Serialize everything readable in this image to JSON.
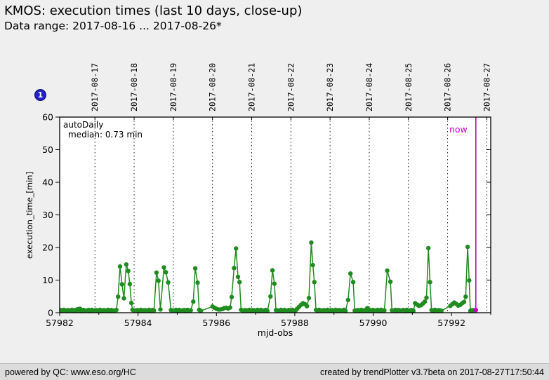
{
  "header": {
    "title": "KMOS: execution times (last 10 days, close-up)",
    "subtitle": "Data range: 2017-08-16 ... 2017-08-26*"
  },
  "badge": {
    "label": "1"
  },
  "footer": {
    "left": "powered by QC: www.eso.org/HC",
    "right": "created by trendPlotter v3.7beta on 2017-08-27T17:50:44"
  },
  "chart_data": {
    "type": "line",
    "title": "KMOS: execution times (last 10 days, close-up)",
    "subtitle": "Data range: 2017-08-16 ... 2017-08-26*",
    "xlabel": "mjd-obs",
    "ylabel": "execution_time_[min]",
    "xlim": [
      57982,
      57993
    ],
    "ylim": [
      0,
      60
    ],
    "x_ticks": [
      57982,
      57984,
      57986,
      57988,
      57990,
      57992
    ],
    "x_minor_ticks": [
      57983,
      57985,
      57987,
      57989,
      57991,
      57993
    ],
    "y_ticks": [
      0,
      10,
      20,
      30,
      40,
      50,
      60
    ],
    "grid": "vertical dotted lines at date boundaries",
    "legend_position": "none",
    "annotations": {
      "dataset_label": "autoDaily",
      "median_label": "median: 0.73 min"
    },
    "date_lines": [
      {
        "mjd": 57982.9,
        "label": "2017-08-17"
      },
      {
        "mjd": 57983.9,
        "label": "2017-08-18"
      },
      {
        "mjd": 57984.9,
        "label": "2017-08-19"
      },
      {
        "mjd": 57985.9,
        "label": "2017-08-20"
      },
      {
        "mjd": 57986.9,
        "label": "2017-08-21"
      },
      {
        "mjd": 57987.9,
        "label": "2017-08-22"
      },
      {
        "mjd": 57988.9,
        "label": "2017-08-23"
      },
      {
        "mjd": 57989.9,
        "label": "2017-08-24"
      },
      {
        "mjd": 57990.9,
        "label": "2017-08-25"
      },
      {
        "mjd": 57991.9,
        "label": "2017-08-26"
      },
      {
        "mjd": 57992.9,
        "label": "2017-08-27"
      }
    ],
    "now_line": {
      "mjd": 57992.62,
      "label": "now"
    },
    "colors": {
      "series": "#1f8c1f",
      "now": "#c000c0",
      "grid": "#000000",
      "plot_background": "#ffffff"
    },
    "series": [
      {
        "name": "autoDaily execution_time",
        "color": "#1f8c1f",
        "marker": "circle",
        "baseline_value": 0.7,
        "baseline_segments": [
          [
            57982.02,
            57983.46
          ],
          [
            57983.86,
            57984.43
          ],
          [
            57984.84,
            57985.38
          ],
          [
            57985.56,
            57985.63
          ],
          [
            57986.63,
            57987.34
          ],
          [
            57987.52,
            57988.04
          ],
          [
            57988.54,
            57989.32
          ],
          [
            57989.53,
            57990.32
          ],
          [
            57990.48,
            57991.04
          ],
          [
            57991.49,
            57991.76
          ],
          [
            57992.48,
            57992.6
          ]
        ],
        "points": [
          [
            57982.46,
            1.1
          ],
          [
            57982.52,
            1.2
          ],
          [
            57983.49,
            4.9
          ],
          [
            57983.54,
            14.2
          ],
          [
            57983.59,
            8.7
          ],
          [
            57983.64,
            4.4
          ],
          [
            57983.7,
            14.8
          ],
          [
            57983.75,
            12.8
          ],
          [
            57983.79,
            8.8
          ],
          [
            57983.83,
            3.0
          ],
          [
            57984.47,
            12.3
          ],
          [
            57984.52,
            9.8
          ],
          [
            57984.57,
            1.0
          ],
          [
            57984.66,
            13.9
          ],
          [
            57984.71,
            12.4
          ],
          [
            57984.77,
            9.3
          ],
          [
            57985.41,
            3.4
          ],
          [
            57985.46,
            13.6
          ],
          [
            57985.52,
            9.2
          ],
          [
            57985.9,
            1.9
          ],
          [
            57985.95,
            1.5
          ],
          [
            57986.0,
            1.2
          ],
          [
            57986.05,
            1.0
          ],
          [
            57986.1,
            1.0
          ],
          [
            57986.15,
            1.1
          ],
          [
            57986.2,
            1.4
          ],
          [
            57986.25,
            1.5
          ],
          [
            57986.3,
            1.3
          ],
          [
            57986.35,
            1.6
          ],
          [
            57986.39,
            4.8
          ],
          [
            57986.45,
            13.7
          ],
          [
            57986.5,
            19.7
          ],
          [
            57986.55,
            11.0
          ],
          [
            57986.59,
            9.4
          ],
          [
            57987.38,
            5.0
          ],
          [
            57987.43,
            13.0
          ],
          [
            57987.48,
            8.9
          ],
          [
            57988.06,
            1.2
          ],
          [
            57988.11,
            1.8
          ],
          [
            57988.16,
            2.4
          ],
          [
            57988.21,
            2.9
          ],
          [
            57988.26,
            2.6
          ],
          [
            57988.31,
            2.0
          ],
          [
            57988.36,
            4.5
          ],
          [
            57988.42,
            21.5
          ],
          [
            57988.46,
            14.6
          ],
          [
            57988.5,
            9.4
          ],
          [
            57989.36,
            3.9
          ],
          [
            57989.42,
            12.0
          ],
          [
            57989.49,
            9.4
          ],
          [
            57989.85,
            1.4
          ],
          [
            57990.36,
            12.9
          ],
          [
            57990.44,
            9.5
          ],
          [
            57991.07,
            2.9
          ],
          [
            57991.12,
            2.5
          ],
          [
            57991.17,
            2.1
          ],
          [
            57991.22,
            2.3
          ],
          [
            57991.27,
            2.8
          ],
          [
            57991.32,
            3.4
          ],
          [
            57991.36,
            4.6
          ],
          [
            57991.41,
            19.8
          ],
          [
            57991.45,
            9.4
          ],
          [
            57991.97,
            2.1
          ],
          [
            57992.02,
            2.6
          ],
          [
            57992.07,
            3.1
          ],
          [
            57992.12,
            2.7
          ],
          [
            57992.17,
            2.2
          ],
          [
            57992.22,
            2.4
          ],
          [
            57992.27,
            2.9
          ],
          [
            57992.32,
            3.3
          ],
          [
            57992.36,
            4.9
          ],
          [
            57992.41,
            20.2
          ],
          [
            57992.45,
            9.9
          ]
        ],
        "last_point": {
          "mjd": 57992.62,
          "value": 0.8,
          "color": "#c000c0"
        }
      }
    ]
  }
}
